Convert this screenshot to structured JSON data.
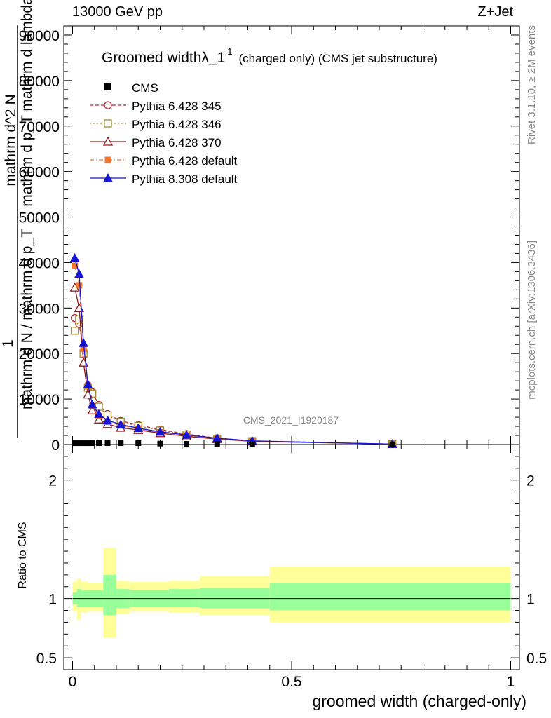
{
  "header": {
    "left": "13000 GeV pp",
    "right": "Z+Jet"
  },
  "side": {
    "rivet": "Rivet 3.1.10, ≥ 2M events",
    "mcplots": "mcplots.cern.ch [arXiv:1306.3436]"
  },
  "watermark": "CMS_2021_I1920187",
  "chart_data": [
    {
      "type": "line",
      "title_main": "Groomed widthλ_1",
      "title_sup": "1",
      "title_sub": "(charged only) (CMS jet substructure)",
      "ylabel_lines": [
        "1",
        "mathrm d N / mathrm d p_T",
        "mathrm d^2 N",
        "mathrm d p_T mathrm d lambda"
      ],
      "ylim": [
        0,
        92000
      ],
      "yticks": [
        {
          "v": 0,
          "t": "0"
        },
        {
          "v": 10000,
          "t": "10000"
        },
        {
          "v": 20000,
          "t": "20000"
        },
        {
          "v": 30000,
          "t": "30000"
        },
        {
          "v": 40000,
          "t": "40000"
        },
        {
          "v": 50000,
          "t": "50000"
        },
        {
          "v": 60000,
          "t": "60000"
        },
        {
          "v": 70000,
          "t": "70000"
        },
        {
          "v": 80000,
          "t": "80000"
        },
        {
          "v": 90000,
          "t": "90000"
        }
      ],
      "xlim": [
        -0.02,
        1.02
      ],
      "cms": {
        "name": "CMS",
        "x": [
          0.005,
          0.015,
          0.025,
          0.035,
          0.045,
          0.06,
          0.08,
          0.11,
          0.15,
          0.2,
          0.26,
          0.33,
          0.41,
          0.73
        ],
        "y": [
          300,
          300,
          300,
          300,
          300,
          300,
          300,
          300,
          300,
          200,
          150,
          100,
          60,
          20
        ]
      },
      "series": [
        {
          "name": "Pythia 6.428 345",
          "color": "#b22a38",
          "dash": "5,3",
          "marker": "circle-open",
          "y": [
            27800,
            26500,
            20500,
            13000,
            11500,
            8700,
            6700,
            5200,
            4300,
            3300,
            2300,
            1400,
            800,
            100
          ]
        },
        {
          "name": "Pythia 6.428 346",
          "color": "#a08830",
          "dash": "2,3",
          "marker": "square-open",
          "y": [
            25000,
            27500,
            20000,
            12500,
            11200,
            8300,
            6400,
            5000,
            4100,
            3100,
            2200,
            1300,
            750,
            100
          ]
        },
        {
          "name": "Pythia 6.428 370",
          "color": "#8b1a1a",
          "dash": "",
          "marker": "triangle-open",
          "y": [
            34500,
            30000,
            18000,
            11000,
            7500,
            5500,
            4500,
            3700,
            3200,
            2500,
            1800,
            1200,
            700,
            100
          ]
        },
        {
          "name": "Pythia 6.428 default",
          "color": "#f07830",
          "dash": "6,3,1,3",
          "marker": "square-filled",
          "y": [
            39300,
            35000,
            21000,
            12800,
            8500,
            6300,
            5000,
            4200,
            3500,
            2700,
            2000,
            1300,
            750,
            100
          ]
        },
        {
          "name": "Pythia 8.308 default",
          "color": "#1515d5",
          "dash": "",
          "marker": "triangle-filled",
          "y": [
            41000,
            37500,
            22300,
            13200,
            8800,
            6700,
            5300,
            4400,
            3600,
            2800,
            2100,
            1400,
            800,
            100
          ]
        }
      ]
    },
    {
      "type": "area",
      "ylabel": "Ratio to CMS",
      "ylim": [
        0.4,
        2.3
      ],
      "yticks": [
        {
          "v": 0.5,
          "t": "0.5"
        },
        {
          "v": 1,
          "t": "1"
        },
        {
          "v": 2,
          "t": "2"
        }
      ],
      "xlim": [
        -0.02,
        1.02
      ],
      "xticks": [
        {
          "v": 0,
          "t": "0"
        },
        {
          "v": 0.5,
          "t": "0.5"
        },
        {
          "v": 1,
          "t": "1"
        }
      ],
      "xlabel": "groomed width (charged-only)",
      "band_colors": {
        "stat": "#99ff99",
        "total": "#ffff99"
      },
      "bins": [
        {
          "lo": 0.0,
          "hi": 0.01,
          "stat": [
            0.95,
            1.05
          ],
          "tot": [
            0.89,
            1.14
          ]
        },
        {
          "lo": 0.01,
          "hi": 0.02,
          "stat": [
            0.93,
            1.08
          ],
          "tot": [
            0.82,
            1.17
          ]
        },
        {
          "lo": 0.02,
          "hi": 0.035,
          "stat": [
            0.93,
            1.07
          ],
          "tot": [
            0.88,
            1.14
          ]
        },
        {
          "lo": 0.035,
          "hi": 0.07,
          "stat": [
            0.93,
            1.07
          ],
          "tot": [
            0.89,
            1.13
          ]
        },
        {
          "lo": 0.07,
          "hi": 0.1,
          "stat": [
            0.86,
            1.2
          ],
          "tot": [
            0.67,
            1.43
          ]
        },
        {
          "lo": 0.1,
          "hi": 0.13,
          "stat": [
            0.92,
            1.08
          ],
          "tot": [
            0.87,
            1.15
          ]
        },
        {
          "lo": 0.13,
          "hi": 0.22,
          "stat": [
            0.93,
            1.07
          ],
          "tot": [
            0.89,
            1.14
          ]
        },
        {
          "lo": 0.22,
          "hi": 0.29,
          "stat": [
            0.93,
            1.08
          ],
          "tot": [
            0.88,
            1.15
          ]
        },
        {
          "lo": 0.29,
          "hi": 0.45,
          "stat": [
            0.92,
            1.09
          ],
          "tot": [
            0.86,
            1.19
          ]
        },
        {
          "lo": 0.45,
          "hi": 1.0,
          "stat": [
            0.9,
            1.13
          ],
          "tot": [
            0.8,
            1.27
          ]
        }
      ]
    }
  ]
}
